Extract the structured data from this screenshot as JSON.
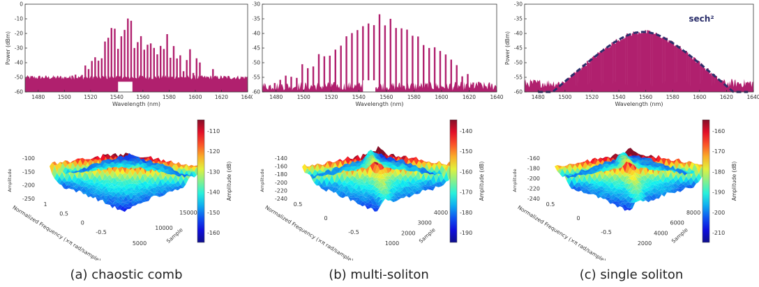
{
  "colors": {
    "spectrum": "#b0206e",
    "fit": "#2b2f6b",
    "axis": "#333333"
  },
  "chart_data": [
    {
      "type": "bar",
      "panel": "a",
      "xlabel": "Wavelength (nm)",
      "ylabel": "Power (dBm)",
      "xlim": [
        1470,
        1640
      ],
      "ylim": [
        -60,
        0
      ],
      "xticks": [
        "1480",
        "1500",
        "1520",
        "1540",
        "1560",
        "1580",
        "1600",
        "1620",
        "1640"
      ],
      "yticks": [
        "0",
        "-10",
        "-20",
        "-30",
        "-40",
        "-50",
        "-60"
      ],
      "envelope": {
        "x": [
          1470,
          1500,
          1520,
          1540,
          1555,
          1570,
          1590,
          1610,
          1640
        ],
        "y": [
          -52,
          -45,
          -28,
          -12,
          -8,
          -12,
          -25,
          -42,
          -52
        ]
      },
      "noise_floor": -50,
      "spacing_nm": 2.5
    },
    {
      "type": "bar",
      "panel": "b",
      "xlabel": "Wavelength (nm)",
      "ylabel": "Power (dBm)",
      "xlim": [
        1470,
        1640
      ],
      "ylim": [
        -60,
        -30
      ],
      "xticks": [
        "1480",
        "1500",
        "1520",
        "1540",
        "1560",
        "1580",
        "1600",
        "1620",
        "1640"
      ],
      "yticks": [
        "-30",
        "-35",
        "-40",
        "-45",
        "-50",
        "-55",
        "-60"
      ],
      "envelope": {
        "x": [
          1470,
          1490,
          1510,
          1530,
          1550,
          1555,
          1570,
          1590,
          1610,
          1630,
          1640
        ],
        "y": [
          -57,
          -53,
          -47,
          -40,
          -34,
          -33,
          -35,
          -41,
          -50,
          -56,
          -58
        ]
      },
      "noise_floor": -58,
      "spacing_nm": 4
    },
    {
      "type": "bar",
      "panel": "c",
      "xlabel": "Wavelength (nm)",
      "ylabel": "Power (dBm)",
      "xlim": [
        1470,
        1640
      ],
      "ylim": [
        -60,
        -30
      ],
      "xticks": [
        "1480",
        "1500",
        "1520",
        "1540",
        "1560",
        "1580",
        "1600",
        "1620",
        "1640"
      ],
      "yticks": [
        "-30",
        "-35",
        "-40",
        "-45",
        "-50",
        "-55",
        "-60"
      ],
      "fit_label": "sech²",
      "fit": {
        "center": 1558,
        "peak": -39.5,
        "width_nm": 22
      },
      "noise_floor": -57,
      "spacing_nm": 0.8
    }
  ],
  "surfaces": [
    {
      "zlabel": "Amplitude",
      "ylabel": "Normalized Frequency (×π rad/sample)",
      "xlabel": "Sample",
      "zticks": [
        "-100",
        "-150",
        "-200",
        "-250"
      ],
      "yticks": [
        "1",
        "0.5",
        "0",
        "-0.5"
      ],
      "xticks": [
        "5000",
        "10000",
        "15000"
      ],
      "colorbar_label": "Amplitude (dB)",
      "colorbar_ticks": [
        "-110",
        "-120",
        "-130",
        "-140",
        "-150",
        "-160"
      ]
    },
    {
      "zlabel": "Amplitude",
      "ylabel": "Normalized Frequency (×π rad/sample)",
      "xlabel": "Sample",
      "zticks": [
        "-140",
        "-160",
        "-180",
        "-200",
        "-220",
        "-240"
      ],
      "yticks": [
        "0.5",
        "0",
        "-0.5"
      ],
      "xticks": [
        "1000",
        "2000",
        "3000",
        "4000"
      ],
      "colorbar_label": "Amplitude (dB)",
      "colorbar_ticks": [
        "-140",
        "-150",
        "-160",
        "-170",
        "-180",
        "-190"
      ]
    },
    {
      "zlabel": "Amplitude",
      "ylabel": "Normalized Frequency (×π rad/sample)",
      "xlabel": "Sample",
      "zticks": [
        "-160",
        "-180",
        "-200",
        "-220",
        "-240"
      ],
      "yticks": [
        "0.5",
        "0",
        "-0.5"
      ],
      "xticks": [
        "2000",
        "4000",
        "6000",
        "8000"
      ],
      "colorbar_label": "Amplitude (dB)",
      "colorbar_ticks": [
        "-160",
        "-170",
        "-180",
        "-190",
        "-200",
        "-210"
      ]
    }
  ],
  "captions": [
    "(a) chaostic comb",
    "(b) multi-soliton",
    "(c) single soliton"
  ]
}
